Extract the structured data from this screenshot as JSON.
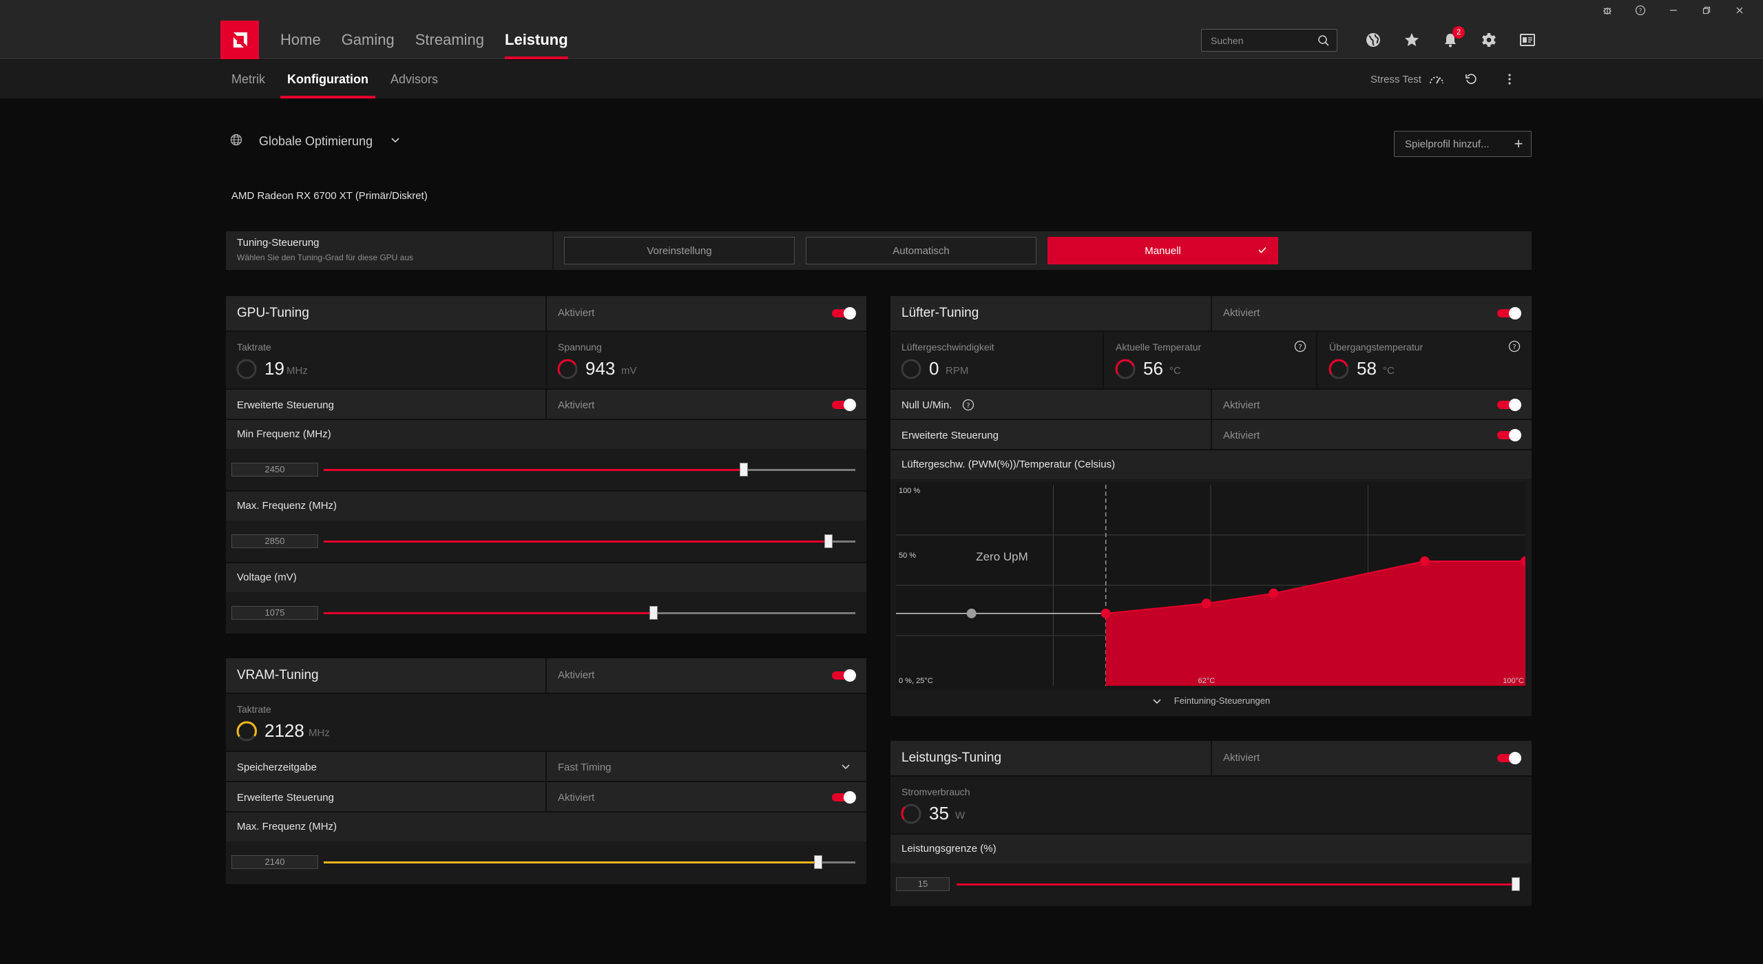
{
  "window": {
    "controls": [
      "bug-icon",
      "help-icon",
      "minimize-icon",
      "restore-icon",
      "close-icon"
    ]
  },
  "nav": {
    "tabs": [
      "Home",
      "Gaming",
      "Streaming",
      "Leistung"
    ],
    "active": "Leistung",
    "search_placeholder": "Suchen",
    "notifications_count": "2"
  },
  "subnav": {
    "tabs": [
      "Metrik",
      "Konfiguration",
      "Advisors"
    ],
    "active": "Konfiguration",
    "stress_test": "Stress Test"
  },
  "profile": {
    "name": "Globale Optimierung",
    "add_label": "Spielprofil hinzuf..."
  },
  "gpu_name": "AMD Radeon RX 6700 XT (Primär/Diskret)",
  "tuning_control": {
    "title": "Tuning-Steuerung",
    "subtitle": "Wählen Sie den Tuning-Grad für diese GPU aus",
    "options": [
      "Voreinstellung",
      "Automatisch",
      "Manuell"
    ],
    "selected": "Manuell"
  },
  "gpu_tuning": {
    "title": "GPU-Tuning",
    "status": "Aktiviert",
    "enabled": true,
    "clock_label": "Taktrate",
    "clock_value": "19",
    "clock_unit": "MHz",
    "voltage_label": "Spannung",
    "voltage_value": "943",
    "voltage_unit": "mV",
    "advanced_label": "Erweiterte Steuerung",
    "advanced_status": "Aktiviert",
    "min_freq_label": "Min Frequenz (MHz)",
    "min_freq_value": "2450",
    "min_freq_fraction": 0.79,
    "max_freq_label": "Max. Frequenz (MHz)",
    "max_freq_value": "2850",
    "max_freq_fraction": 0.95,
    "voltage_mv_label": "Voltage (mV)",
    "voltage_mv_value": "1075",
    "voltage_mv_fraction": 0.62
  },
  "vram_tuning": {
    "title": "VRAM-Tuning",
    "status": "Aktiviert",
    "clock_label": "Taktrate",
    "clock_value": "2128",
    "clock_unit": "MHz",
    "timing_label": "Speicherzeitgabe",
    "timing_value": "Fast Timing",
    "advanced_label": "Erweiterte Steuerung",
    "advanced_status": "Aktiviert",
    "max_freq_label": "Max. Frequenz (MHz)",
    "max_freq_value": "2140",
    "max_freq_fraction": 0.93
  },
  "fan_tuning": {
    "title": "Lüfter-Tuning",
    "status": "Aktiviert",
    "speed_label": "Lüftergeschwindigkeit",
    "speed_value": "0",
    "speed_unit": "RPM",
    "temp_label": "Aktuelle Temperatur",
    "temp_value": "56",
    "temp_unit": "°C",
    "junction_label": "Übergangstemperatur",
    "junction_value": "58",
    "junction_unit": "°C",
    "zero_rpm_label": "Null U/Min.",
    "zero_rpm_status": "Aktiviert",
    "advanced_label": "Erweiterte Steuerung",
    "advanced_status": "Aktiviert",
    "chart_title": "Lüftergeschw. (PWM(%))/Temperatur (Celsius)",
    "fine_tune_label": "Feintuning-Steuerungen"
  },
  "chart_data": {
    "type": "area",
    "title": "Lüftergeschw. (PWM(%))/Temperatur (Celsius)",
    "y_tick_labels": [
      "100 %",
      "50 %",
      "0 %, 25°C"
    ],
    "x_tick_labels": [
      "62°C",
      "100°C"
    ],
    "annotation": "Zero UpM",
    "zero_rpm_line_temp": 50,
    "points": [
      {
        "temp": 34,
        "pwm": 36
      },
      {
        "temp": 50,
        "pwm": 36
      },
      {
        "temp": 62,
        "pwm": 41
      },
      {
        "temp": 70,
        "pwm": 46
      },
      {
        "temp": 88,
        "pwm": 62
      },
      {
        "temp": 100,
        "pwm": 62
      }
    ],
    "xlim": [
      25,
      100
    ],
    "ylim": [
      0,
      100
    ],
    "colors": {
      "fill": "#c40026",
      "line": "#e4002b",
      "grid": "#3e3e3e"
    }
  },
  "power_tuning": {
    "title": "Leistungs-Tuning",
    "status": "Aktiviert",
    "power_label": "Stromverbrauch",
    "power_value": "35",
    "power_unit": "W",
    "limit_label": "Leistungsgrenze (%)",
    "limit_value": "15",
    "limit_fraction": 1.0
  },
  "colors": {
    "accent": "#e4002b",
    "vram_accent": "#f0b51e"
  }
}
